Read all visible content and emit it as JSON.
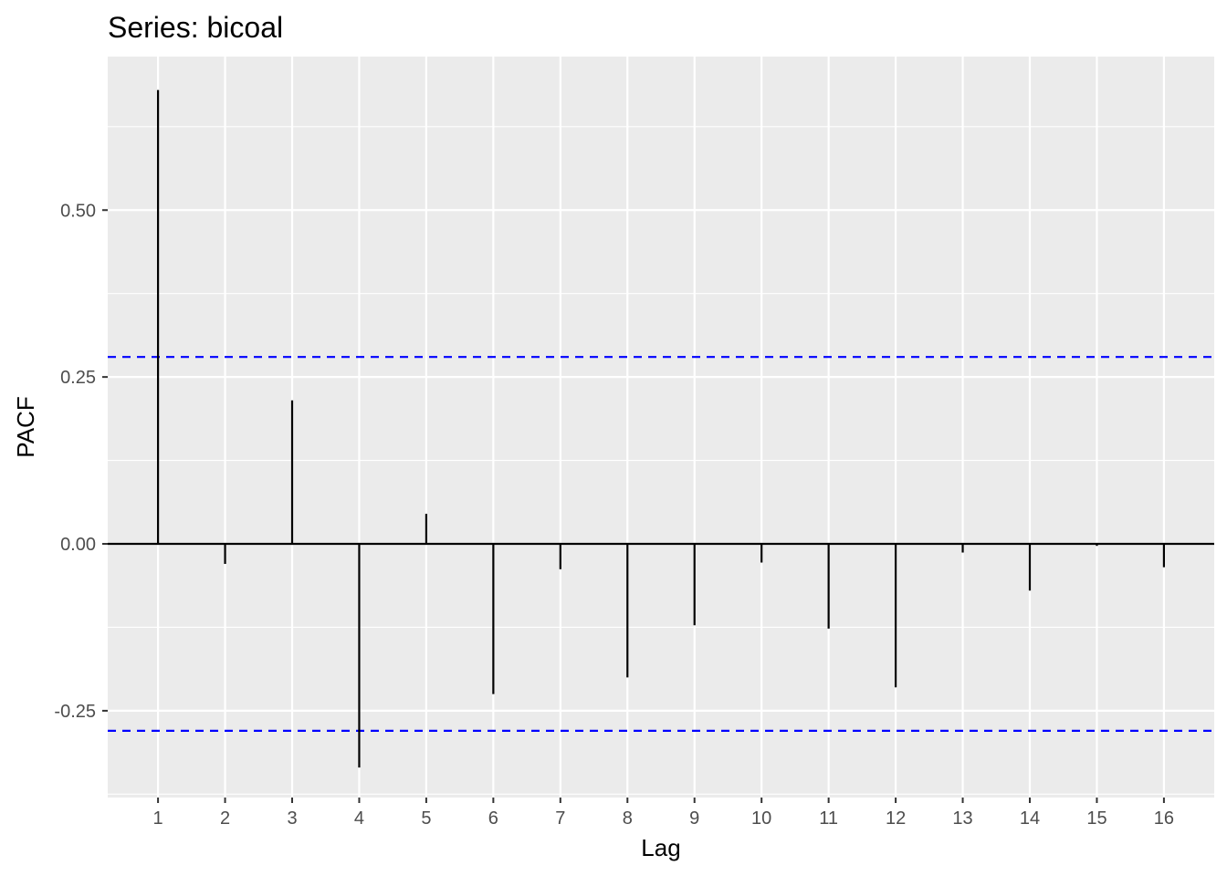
{
  "chart_data": {
    "type": "bar",
    "title": "Series: bicoal",
    "xlabel": "Lag",
    "ylabel": "PACF",
    "x": [
      1,
      2,
      3,
      4,
      5,
      6,
      7,
      8,
      9,
      10,
      11,
      12,
      13,
      14,
      15,
      16
    ],
    "series": [
      {
        "values": [
          0.68,
          -0.03,
          0.215,
          -0.335,
          0.045,
          -0.225,
          -0.038,
          -0.2,
          -0.122,
          -0.028,
          -0.127,
          -0.215,
          -0.013,
          -0.07,
          -0.003,
          -0.035
        ]
      }
    ],
    "xticks": [
      "1",
      "2",
      "3",
      "4",
      "5",
      "6",
      "7",
      "8",
      "9",
      "10",
      "11",
      "12",
      "13",
      "14",
      "15",
      "16"
    ],
    "yticks": [
      "-0.25",
      "0.00",
      "0.25",
      "0.50"
    ],
    "ytick_values": [
      -0.25,
      0,
      0.25,
      0.5
    ],
    "xlim": [
      0.25,
      16.75
    ],
    "ylim": [
      -0.38,
      0.73
    ],
    "confidence_bounds": [
      0.28,
      -0.28
    ],
    "grid": true,
    "colors": {
      "panel": "#ebebeb",
      "grid": "#ffffff",
      "bar": "#000000",
      "bound": "#0000ff"
    }
  }
}
